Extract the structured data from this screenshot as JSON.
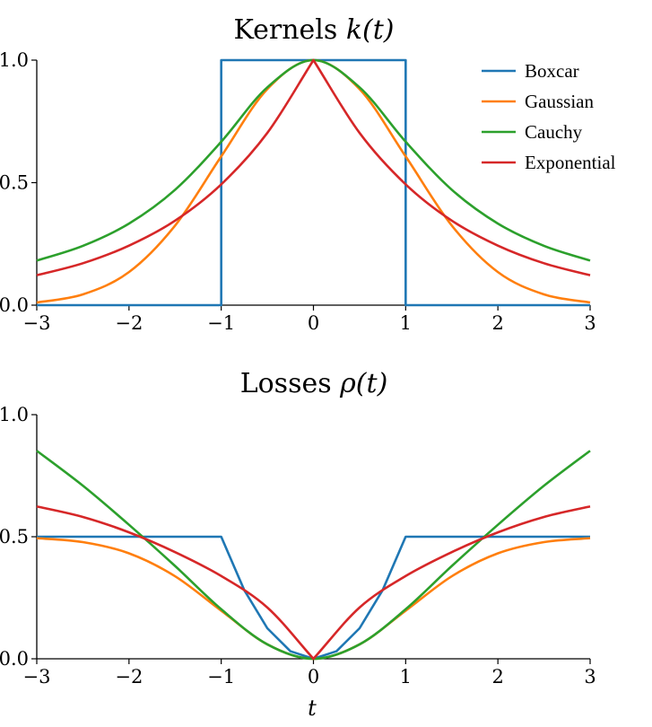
{
  "chart_data": [
    {
      "type": "line",
      "title": "Kernels k(t)",
      "title_parts": {
        "text": "Kernels ",
        "math": "k(t)"
      },
      "xlabel": "",
      "ylabel": "",
      "xlim": [
        -3,
        3
      ],
      "ylim": [
        0,
        1
      ],
      "x_ticks": [
        "−3",
        "−2",
        "−1",
        "0",
        "1",
        "2",
        "3"
      ],
      "y_ticks": [
        "0.0",
        "0.5",
        "1.0"
      ],
      "grid": false,
      "legend_position": "top-right",
      "series": [
        {
          "name": "Boxcar",
          "color": "#1f77b4",
          "x": [
            -3,
            -1,
            -1,
            1,
            1,
            3
          ],
          "y": [
            0,
            0,
            1,
            1,
            0,
            0
          ]
        },
        {
          "name": "Gaussian",
          "color": "#ff7f0e",
          "x": [
            -3,
            -2.5,
            -2,
            -1.5,
            -1,
            -0.5,
            0,
            0.5,
            1,
            1.5,
            2,
            2.5,
            3
          ],
          "y": [
            0.011,
            0.044,
            0.135,
            0.325,
            0.607,
            0.882,
            1,
            0.882,
            0.607,
            0.325,
            0.135,
            0.044,
            0.011
          ]
        },
        {
          "name": "Cauchy",
          "color": "#2ca02c",
          "x": [
            -3,
            -2.5,
            -2,
            -1.5,
            -1,
            -0.5,
            0,
            0.5,
            1,
            1.5,
            2,
            2.5,
            3
          ],
          "y": [
            0.182,
            0.242,
            0.333,
            0.471,
            0.667,
            0.889,
            1,
            0.889,
            0.667,
            0.471,
            0.333,
            0.242,
            0.182
          ]
        },
        {
          "name": "Exponential",
          "color": "#d62728",
          "x": [
            -3,
            -2.5,
            -2,
            -1.5,
            -1,
            -0.5,
            0,
            0.5,
            1,
            1.5,
            2,
            2.5,
            3
          ],
          "y": [
            0.122,
            0.171,
            0.243,
            0.345,
            0.493,
            0.703,
            1,
            0.703,
            0.493,
            0.345,
            0.243,
            0.171,
            0.122
          ]
        }
      ]
    },
    {
      "type": "line",
      "title": "Losses ρ(t)",
      "title_parts": {
        "text": "Losses ",
        "math": "ρ(t)"
      },
      "xlabel": "t",
      "ylabel": "",
      "xlim": [
        -3,
        3
      ],
      "ylim": [
        0,
        1
      ],
      "x_ticks": [
        "−3",
        "−2",
        "−1",
        "0",
        "1",
        "2",
        "3"
      ],
      "y_ticks": [
        "0.0",
        "0.5",
        "1.0"
      ],
      "grid": false,
      "series": [
        {
          "name": "Boxcar",
          "color": "#1f77b4",
          "x": [
            -3,
            -1,
            -0.75,
            -0.5,
            -0.25,
            0,
            0.25,
            0.5,
            0.75,
            1,
            3
          ],
          "y": [
            0.5,
            0.5,
            0.281,
            0.125,
            0.031,
            0,
            0.031,
            0.125,
            0.281,
            0.5,
            0.5
          ]
        },
        {
          "name": "Gaussian",
          "color": "#ff7f0e",
          "x": [
            -3,
            -2.5,
            -2,
            -1.5,
            -1,
            -0.5,
            0,
            0.5,
            1,
            1.5,
            2,
            2.5,
            3
          ],
          "y": [
            0.494,
            0.478,
            0.432,
            0.338,
            0.197,
            0.059,
            0,
            0.059,
            0.197,
            0.338,
            0.432,
            0.478,
            0.494
          ]
        },
        {
          "name": "Cauchy",
          "color": "#2ca02c",
          "x": [
            -3,
            -2.5,
            -2,
            -1.5,
            -1,
            -0.5,
            0,
            0.5,
            1,
            1.5,
            2,
            2.5,
            3
          ],
          "y": [
            0.852,
            0.709,
            0.549,
            0.38,
            0.203,
            0.059,
            0,
            0.059,
            0.203,
            0.38,
            0.549,
            0.709,
            0.852
          ]
        },
        {
          "name": "Exponential",
          "color": "#d62728",
          "x": [
            -3,
            -2.5,
            -2,
            -1.5,
            -1,
            -0.5,
            0,
            0.5,
            1,
            1.5,
            2,
            2.5,
            3
          ],
          "y": [
            0.624,
            0.581,
            0.518,
            0.437,
            0.339,
            0.21,
            0,
            0.21,
            0.339,
            0.437,
            0.518,
            0.581,
            0.624
          ]
        }
      ]
    }
  ]
}
